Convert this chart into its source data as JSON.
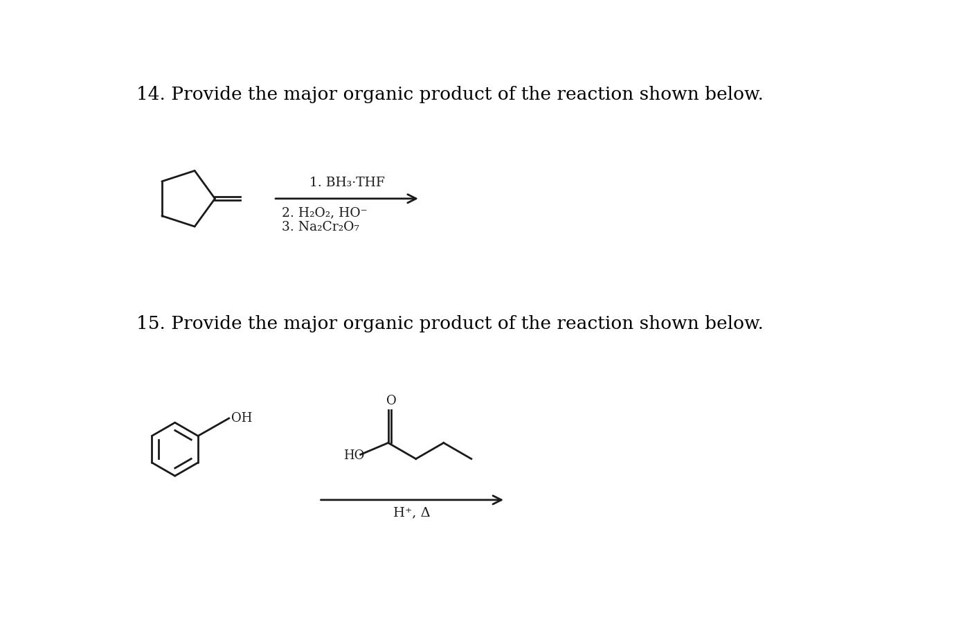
{
  "background_color": "#ffffff",
  "title14": "14. Provide the major organic product of the reaction shown below.",
  "title15": "15. Provide the major organic product of the reaction shown below.",
  "title_fontsize": 19,
  "text_color": "#000000",
  "fig_width": 13.78,
  "fig_height": 9.14,
  "reagent1_line1": "1. BH₃·THF",
  "reagent1_line2": "2. H₂O₂, HO⁻",
  "reagent1_line3": "3. Na₂Cr₂O₇",
  "reagent2": "H⁺, Δ",
  "ho_label": "HO",
  "oh_label": "OH",
  "o_label": "O"
}
